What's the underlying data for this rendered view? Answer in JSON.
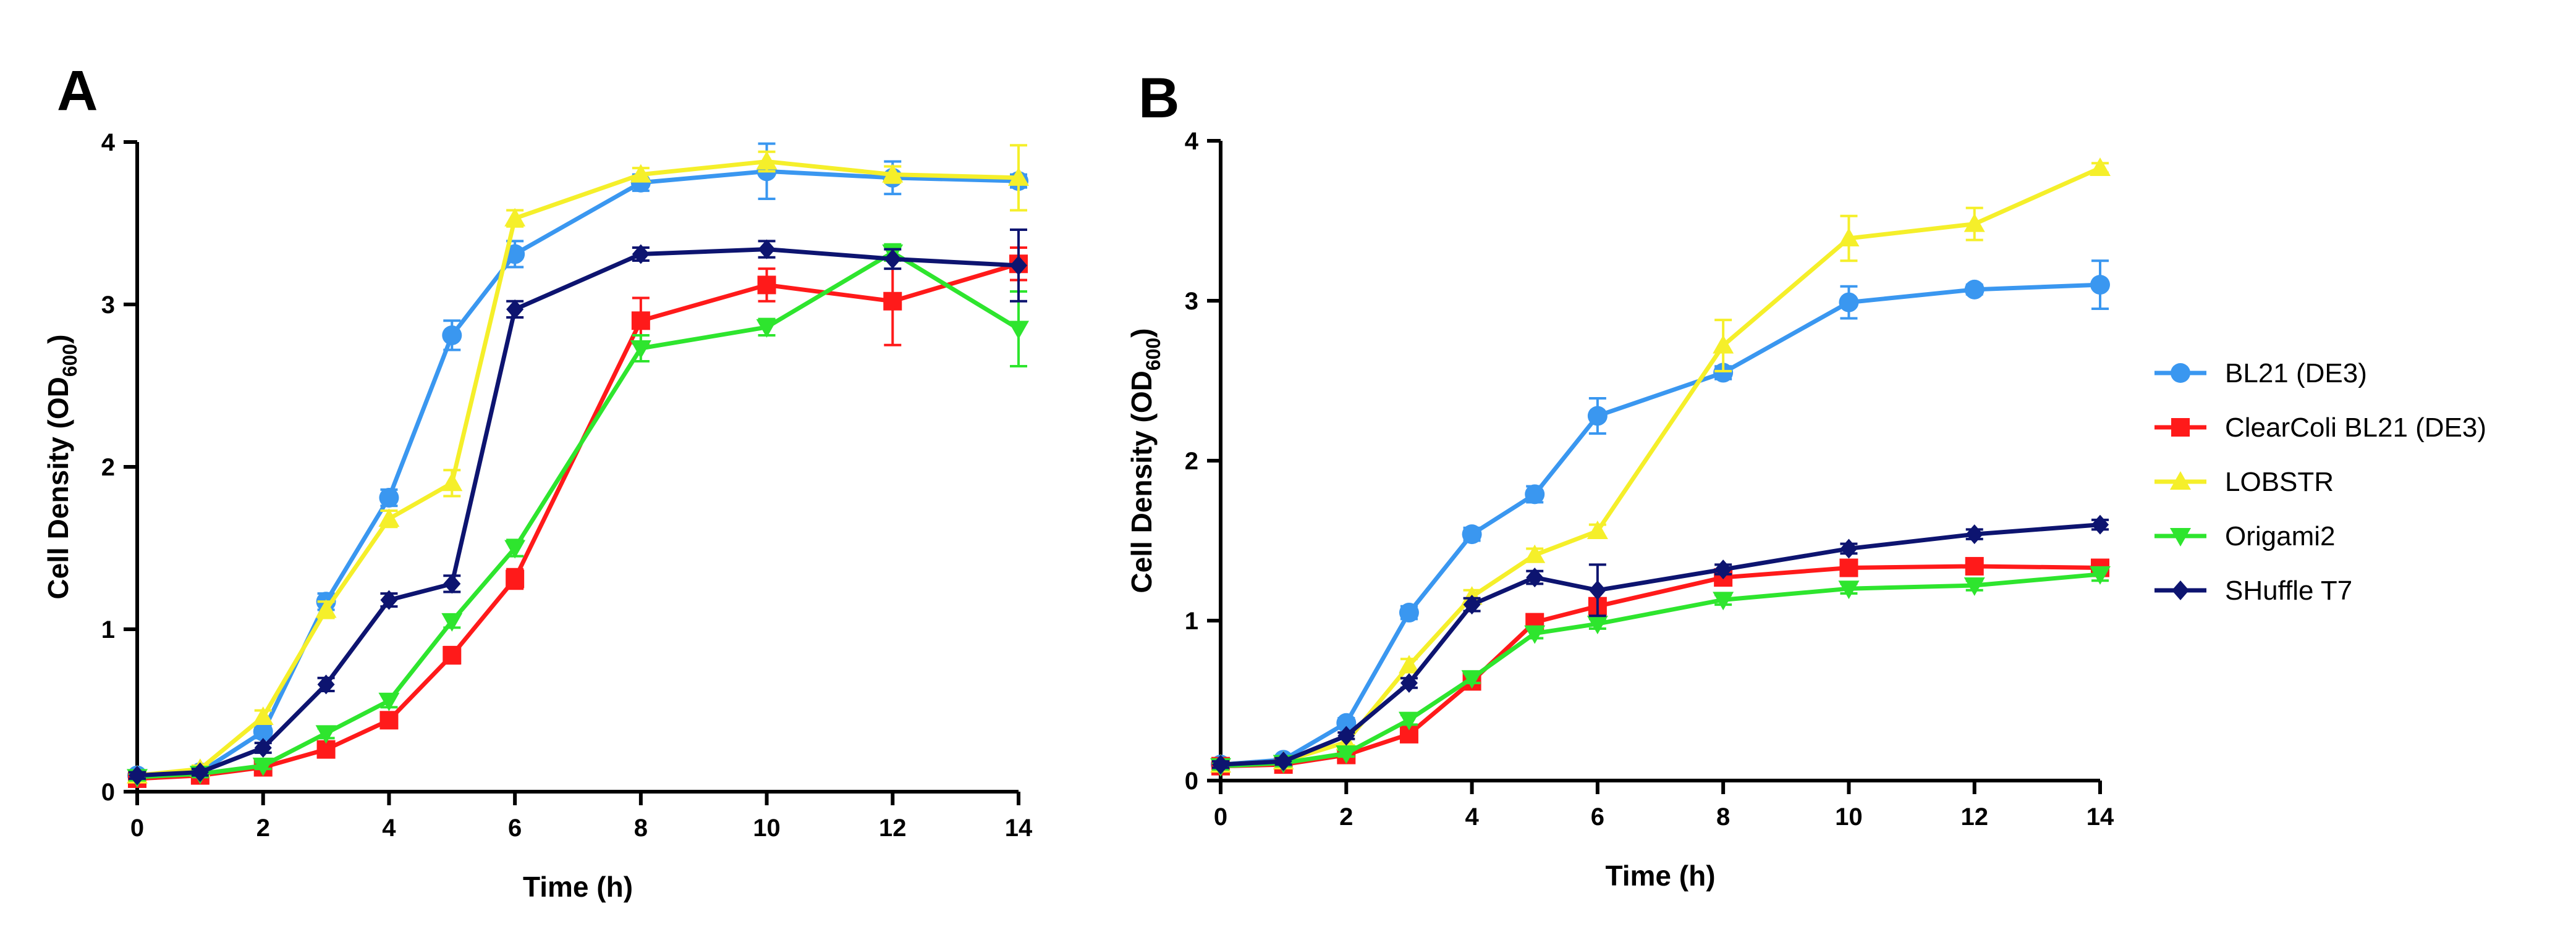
{
  "chart_data": [
    {
      "panel": "A",
      "type": "line",
      "xlabel": "Time (h)",
      "ylabel": "Cell Density (OD",
      "ylabel_sub": "600",
      "ylabel_close": ")",
      "xlim": [
        0,
        14
      ],
      "ylim": [
        0,
        4
      ],
      "xticks": [
        0,
        2,
        4,
        6,
        8,
        10,
        12,
        14
      ],
      "yticks": [
        0,
        1,
        2,
        3,
        4
      ],
      "grid": false,
      "series": [
        {
          "name": "BL21 (DE3)",
          "color": "#3a97f0",
          "marker": "circle",
          "x": [
            0,
            1,
            2,
            3,
            4,
            5,
            6,
            8,
            10,
            12,
            14
          ],
          "y": [
            0.1,
            0.12,
            0.37,
            1.17,
            1.81,
            2.81,
            3.31,
            3.75,
            3.82,
            3.78,
            3.76
          ],
          "err": [
            0.02,
            0.02,
            0.04,
            0.05,
            0.05,
            0.09,
            0.08,
            0.05,
            0.17,
            0.1,
            0.04
          ]
        },
        {
          "name": "ClearColi BL21 (DE3)",
          "color": "#ff1a1a",
          "marker": "square",
          "x": [
            0,
            1,
            2,
            3,
            4,
            5,
            6,
            8,
            10,
            12,
            14
          ],
          "y": [
            0.08,
            0.1,
            0.15,
            0.26,
            0.44,
            0.84,
            1.31,
            2.9,
            3.12,
            3.02,
            3.25
          ],
          "err": [
            0.02,
            0.02,
            0.02,
            0.03,
            0.04,
            0.05,
            0.06,
            0.14,
            0.1,
            0.27,
            0.1
          ]
        },
        {
          "name": "LOBSTR",
          "color": "#f5ef2a",
          "marker": "triangle-up",
          "x": [
            0,
            1,
            2,
            3,
            4,
            5,
            6,
            8,
            10,
            12,
            14
          ],
          "y": [
            0.1,
            0.14,
            0.46,
            1.12,
            1.68,
            1.9,
            3.53,
            3.8,
            3.88,
            3.8,
            3.78
          ],
          "err": [
            0.02,
            0.02,
            0.04,
            0.05,
            0.05,
            0.08,
            0.05,
            0.04,
            0.06,
            0.05,
            0.2
          ]
        },
        {
          "name": "Origami2",
          "color": "#2ee52e",
          "marker": "triangle-down",
          "x": [
            0,
            1,
            2,
            3,
            4,
            5,
            6,
            8,
            10,
            12,
            14
          ],
          "y": [
            0.09,
            0.11,
            0.16,
            0.36,
            0.56,
            1.05,
            1.5,
            2.73,
            2.86,
            3.32,
            2.85
          ],
          "err": [
            0.02,
            0.02,
            0.02,
            0.03,
            0.04,
            0.04,
            0.05,
            0.08,
            0.05,
            0.05,
            0.23
          ]
        },
        {
          "name": "SHuffle T7",
          "color": "#0d1470",
          "marker": "diamond",
          "x": [
            0,
            1,
            2,
            3,
            4,
            5,
            6,
            8,
            10,
            12,
            14
          ],
          "y": [
            0.1,
            0.12,
            0.27,
            0.66,
            1.18,
            1.28,
            2.97,
            3.31,
            3.34,
            3.28,
            3.24
          ],
          "err": [
            0.02,
            0.02,
            0.03,
            0.04,
            0.04,
            0.05,
            0.05,
            0.04,
            0.05,
            0.06,
            0.22
          ]
        }
      ]
    },
    {
      "panel": "B",
      "type": "line",
      "xlabel": "Time (h)",
      "ylabel": "Cell Density (OD",
      "ylabel_sub": "600",
      "ylabel_close": ")",
      "xlim": [
        0,
        14
      ],
      "ylim": [
        0,
        4
      ],
      "xticks": [
        0,
        2,
        4,
        6,
        8,
        10,
        12,
        14
      ],
      "yticks": [
        0,
        1,
        2,
        3,
        4
      ],
      "grid": false,
      "series": [
        {
          "name": "BL21 (DE3)",
          "color": "#3a97f0",
          "marker": "circle",
          "x": [
            0,
            1,
            2,
            3,
            4,
            5,
            6,
            8,
            10,
            12,
            14
          ],
          "y": [
            0.1,
            0.13,
            0.36,
            1.05,
            1.54,
            1.79,
            2.28,
            2.55,
            2.99,
            3.07,
            3.1
          ],
          "err": [
            0.02,
            0.02,
            0.03,
            0.04,
            0.04,
            0.05,
            0.11,
            0.04,
            0.1,
            0.03,
            0.15
          ]
        },
        {
          "name": "ClearColi BL21 (DE3)",
          "color": "#ff1a1a",
          "marker": "square",
          "x": [
            0,
            1,
            2,
            3,
            4,
            5,
            6,
            8,
            10,
            12,
            14
          ],
          "y": [
            0.09,
            0.1,
            0.16,
            0.29,
            0.62,
            0.99,
            1.09,
            1.27,
            1.33,
            1.34,
            1.33
          ],
          "err": [
            0.02,
            0.02,
            0.02,
            0.03,
            0.04,
            0.04,
            0.04,
            0.03,
            0.03,
            0.03,
            0.03
          ]
        },
        {
          "name": "LOBSTR",
          "color": "#f5ef2a",
          "marker": "triangle-up",
          "x": [
            0,
            1,
            2,
            3,
            4,
            5,
            6,
            8,
            10,
            12,
            14
          ],
          "y": [
            0.1,
            0.12,
            0.24,
            0.72,
            1.15,
            1.41,
            1.56,
            2.72,
            3.39,
            3.48,
            3.83
          ],
          "err": [
            0.02,
            0.02,
            0.02,
            0.04,
            0.04,
            0.04,
            0.04,
            0.16,
            0.14,
            0.1,
            0.03
          ]
        },
        {
          "name": "Origami2",
          "color": "#2ee52e",
          "marker": "triangle-down",
          "x": [
            0,
            1,
            2,
            3,
            4,
            5,
            6,
            8,
            10,
            12,
            14
          ],
          "y": [
            0.09,
            0.11,
            0.17,
            0.38,
            0.64,
            0.92,
            0.98,
            1.13,
            1.2,
            1.22,
            1.29
          ],
          "err": [
            0.02,
            0.02,
            0.02,
            0.03,
            0.03,
            0.03,
            0.03,
            0.03,
            0.03,
            0.03,
            0.04
          ]
        },
        {
          "name": "SHuffle T7",
          "color": "#0d1470",
          "marker": "diamond",
          "x": [
            0,
            1,
            2,
            3,
            4,
            5,
            6,
            8,
            10,
            12,
            14
          ],
          "y": [
            0.1,
            0.12,
            0.28,
            0.61,
            1.1,
            1.27,
            1.19,
            1.32,
            1.45,
            1.54,
            1.6
          ],
          "err": [
            0.02,
            0.02,
            0.02,
            0.03,
            0.04,
            0.04,
            0.16,
            0.03,
            0.03,
            0.03,
            0.03
          ]
        }
      ]
    }
  ],
  "legend": {
    "position": "right",
    "entries": [
      "BL21 (DE3)",
      "ClearColi BL21 (DE3)",
      "LOBSTR",
      "Origami2",
      "SHuffle T7"
    ]
  }
}
